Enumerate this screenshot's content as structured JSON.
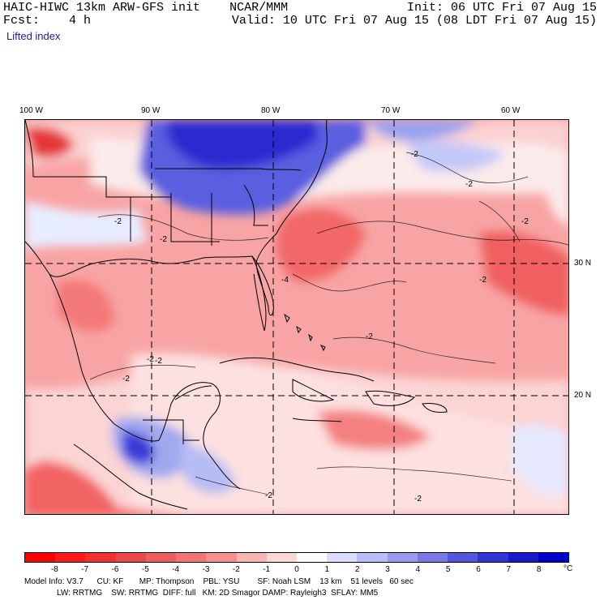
{
  "header": {
    "model": "HAIC-HIWC 13km ARW-GFS init",
    "org": "NCAR/MMM",
    "init": "Init: 06 UTC Fri 07 Aug 15",
    "fcst_label": "Fcst:",
    "fcst_value": "4 h",
    "valid": "Valid: 10 UTC Fri 07 Aug 15 (08 LDT Fri 07 Aug 15)",
    "field": "Lifted index"
  },
  "map": {
    "lon_labels": [
      "100 W",
      "90 W",
      "80 W",
      "70 W",
      "60 W"
    ],
    "lat_labels": [
      "30 N",
      "20 N"
    ],
    "contour_labels": [
      "-2",
      "-2",
      "-2",
      "-2",
      "-2",
      "-2",
      "-2",
      "-2",
      "-2",
      "-4",
      "-2",
      "-2",
      "-2"
    ]
  },
  "colorbar": {
    "ticks": [
      "-8",
      "-7",
      "-6",
      "-5",
      "-4",
      "-3",
      "-2",
      "-1",
      "0",
      "1",
      "2",
      "3",
      "4",
      "5",
      "6",
      "7",
      "8"
    ],
    "unit": "°C",
    "colors": [
      "#ff0000",
      "#ff1a1a",
      "#f23030",
      "#ec4848",
      "#ee5e5e",
      "#f37474",
      "#f78e8e",
      "#fbb4b4",
      "#fdd8d8",
      "#ffffff",
      "#dcdcff",
      "#bcbcf6",
      "#9a9aee",
      "#7878e6",
      "#5656dc",
      "#3434d4",
      "#1a1acc",
      "#0000c8"
    ]
  },
  "info": {
    "line1": "Model Info: V3.7      CU: KF       MP: Thompson    PBL: YSU        SF: Noah LSM    13 km    51 levels   60 sec",
    "line2": "LW: RRTMG    SW: RRTMG  DIFF: full   KM: 2D Smagor DAMP: Rayleigh3  SFLAY: MM5"
  }
}
